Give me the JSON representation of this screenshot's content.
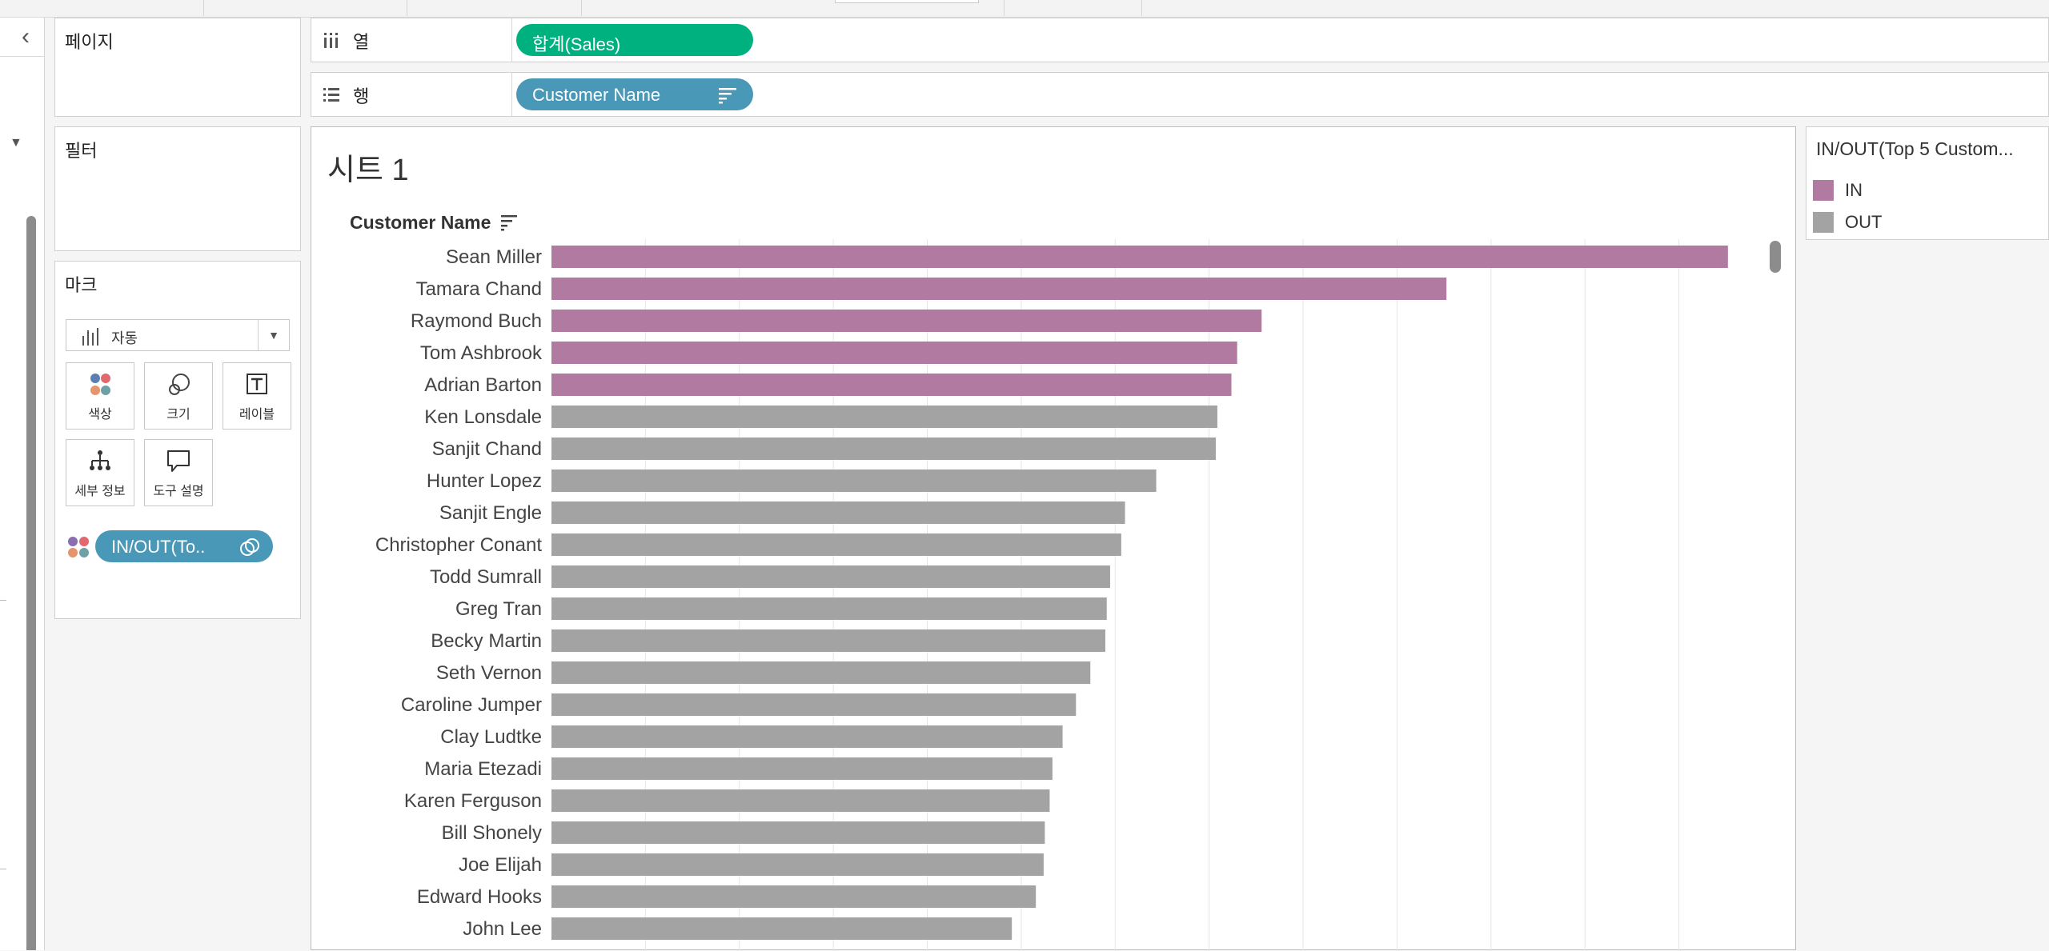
{
  "colors": {
    "in": "#b07aa1",
    "out": "#a3a3a3",
    "sales_pill": "#00b180",
    "dimension_pill": "#4a98b8"
  },
  "cards": {
    "pages": "페이지",
    "filters": "필터",
    "marks": "마크"
  },
  "marks": {
    "type_label": "자동",
    "type_icon": "bar-chart-icon",
    "buttons": [
      {
        "label": "색상",
        "icon": "color-dots-icon"
      },
      {
        "label": "크기",
        "icon": "size-circles-icon"
      },
      {
        "label": "레이블",
        "icon": "text-label-icon"
      },
      {
        "label": "세부 정보",
        "icon": "hierarchy-icon"
      },
      {
        "label": "도구 설명",
        "icon": "speech-bubble-icon"
      }
    ],
    "color_pill_label": "IN/OUT(To.."
  },
  "shelves": {
    "columns": {
      "label": "열",
      "pill": "합계(Sales)"
    },
    "rows": {
      "label": "행",
      "pill": "Customer Name"
    }
  },
  "view": {
    "sheet_title": "시트 1",
    "row_header": "Customer Name"
  },
  "legend": {
    "title": "IN/OUT(Top 5 Custom...",
    "items": [
      {
        "label": "IN",
        "key": "in"
      },
      {
        "label": "OUT",
        "key": "out"
      }
    ]
  },
  "chart_data": {
    "type": "bar",
    "orientation": "horizontal",
    "measure": "합계(Sales)",
    "grid": true,
    "categories": [
      "Sean Miller",
      "Tamara Chand",
      "Raymond Buch",
      "Tom Ashbrook",
      "Adrian Barton",
      "Ken Lonsdale",
      "Sanjit Chand",
      "Hunter Lopez",
      "Sanjit Engle",
      "Christopher Conant",
      "Todd Sumrall",
      "Greg Tran",
      "Becky Martin",
      "Seth Vernon",
      "Caroline Jumper",
      "Clay Ludtke",
      "Maria Etezadi",
      "Karen Ferguson",
      "Bill Shonely",
      "Joe Elijah",
      "Edward Hooks",
      "John Lee"
    ],
    "values": [
      25043,
      19052,
      15117,
      14596,
      14474,
      14175,
      14142,
      12874,
      12209,
      12129,
      11892,
      11820,
      11790,
      11471,
      11165,
      10880,
      10664,
      10605,
      10502,
      10477,
      10311,
      9800
    ],
    "group": [
      "IN",
      "IN",
      "IN",
      "IN",
      "IN",
      "OUT",
      "OUT",
      "OUT",
      "OUT",
      "OUT",
      "OUT",
      "OUT",
      "OUT",
      "OUT",
      "OUT",
      "OUT",
      "OUT",
      "OUT",
      "OUT",
      "OUT",
      "OUT",
      "OUT"
    ],
    "xlim": [
      0,
      26000
    ]
  }
}
